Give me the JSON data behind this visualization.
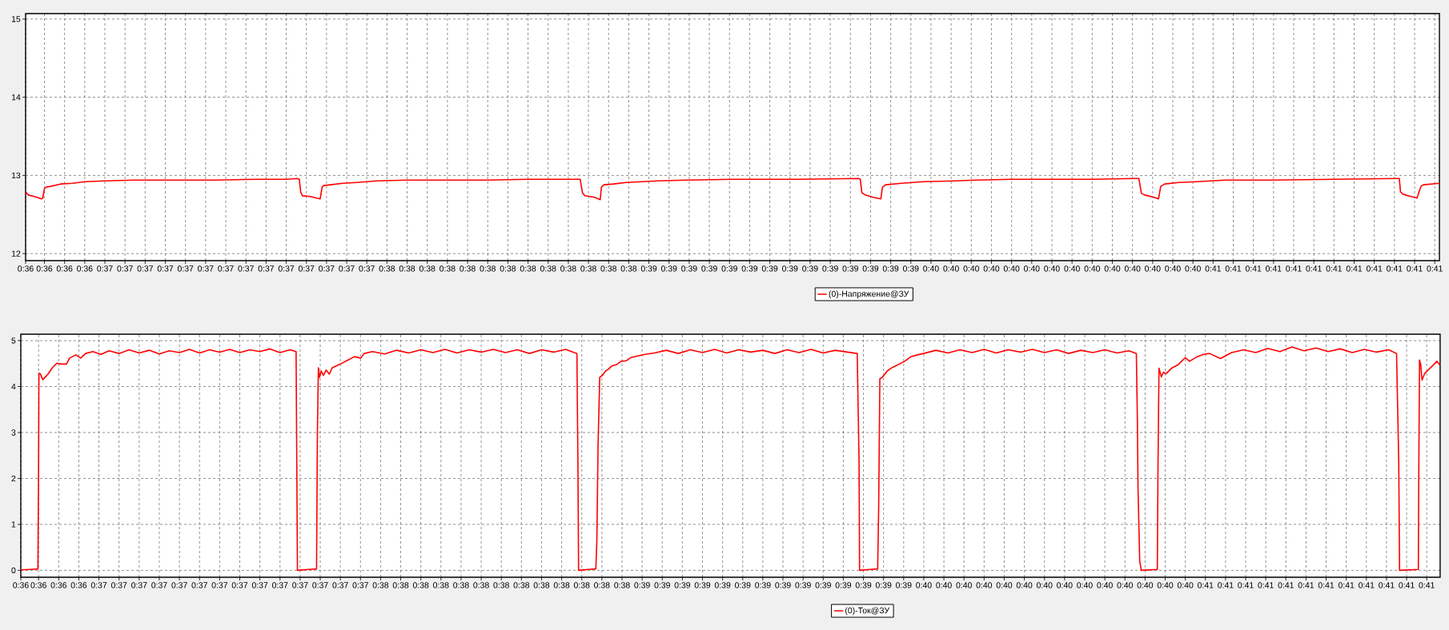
{
  "chart_data": [
    {
      "type": "line",
      "x": [
        0.60458,
        0.60474,
        0.6051,
        0.60552,
        0.6056,
        0.6057,
        0.6058,
        0.60606,
        0.60666,
        0.60738,
        0.6081,
        0.6093,
        0.6111,
        0.6135,
        0.6159,
        0.6183,
        0.6201,
        0.62076,
        0.62088,
        0.62096,
        0.62106,
        0.62154,
        0.6219,
        0.62212,
        0.62224,
        0.62232,
        0.62274,
        0.62346,
        0.6243,
        0.6255,
        0.6273,
        0.6297,
        0.6321,
        0.6345,
        0.63738,
        0.63761,
        0.63774,
        0.63788,
        0.63846,
        0.6388,
        0.63887,
        0.63902,
        0.63959,
        0.64034,
        0.64128,
        0.64223,
        0.64392,
        0.64675,
        0.65052,
        0.65419,
        0.65429,
        0.65438,
        0.65458,
        0.65504,
        0.65551,
        0.65561,
        0.6558,
        0.65674,
        0.65806,
        0.65994,
        0.66116,
        0.6633,
        0.66584,
        0.6681,
        0.67066,
        0.67088,
        0.67103,
        0.67122,
        0.67177,
        0.67205,
        0.67218,
        0.67242,
        0.67326,
        0.67436,
        0.67604,
        0.67882,
        0.68252,
        0.68624,
        0.68639,
        0.68646,
        0.6866,
        0.68707,
        0.68744,
        0.68768,
        0.68782,
        0.68878
      ],
      "series": [
        {
          "name": "(0)-Напряжение@ЗУ",
          "color": "#ff0000",
          "values": [
            12.79,
            12.75,
            12.73,
            12.7,
            12.71,
            12.83,
            12.85,
            12.86,
            12.89,
            12.9,
            12.92,
            12.93,
            12.94,
            12.94,
            12.94,
            12.95,
            12.95,
            12.96,
            12.95,
            12.79,
            12.74,
            12.73,
            12.71,
            12.7,
            12.85,
            12.87,
            12.88,
            12.9,
            12.91,
            12.93,
            12.94,
            12.94,
            12.94,
            12.95,
            12.95,
            12.95,
            12.78,
            12.74,
            12.72,
            12.69,
            12.85,
            12.88,
            12.89,
            12.91,
            12.92,
            12.93,
            12.94,
            12.95,
            12.95,
            12.96,
            12.95,
            12.78,
            12.75,
            12.72,
            12.7,
            12.85,
            12.88,
            12.9,
            12.92,
            12.93,
            12.94,
            12.95,
            12.95,
            12.95,
            12.96,
            12.96,
            12.77,
            12.75,
            12.72,
            12.7,
            12.86,
            12.89,
            12.91,
            12.92,
            12.94,
            12.94,
            12.95,
            12.96,
            12.96,
            12.79,
            12.76,
            12.73,
            12.71,
            12.86,
            12.88,
            12.9
          ]
        }
      ],
      "xlim": [
        0.60458,
        0.68878
      ],
      "ylim": [
        11.91,
        15.07
      ],
      "xticks": [
        {
          "value": 0.60458,
          "label": "0:36"
        },
        {
          "value": 0.6057,
          "label": "0:36"
        },
        {
          "value": 0.6069,
          "label": "0:36"
        },
        {
          "value": 0.6081,
          "label": "0:36"
        },
        {
          "value": 0.6093,
          "label": "0:37"
        },
        {
          "value": 0.6105,
          "label": "0:37"
        },
        {
          "value": 0.6117,
          "label": "0:37"
        },
        {
          "value": 0.6129,
          "label": "0:37"
        },
        {
          "value": 0.6141,
          "label": "0:37"
        },
        {
          "value": 0.6153,
          "label": "0:37"
        },
        {
          "value": 0.6165,
          "label": "0:37"
        },
        {
          "value": 0.6177,
          "label": "0:37"
        },
        {
          "value": 0.6189,
          "label": "0:37"
        },
        {
          "value": 0.6201,
          "label": "0:37"
        },
        {
          "value": 0.6213,
          "label": "0:37"
        },
        {
          "value": 0.6225,
          "label": "0:37"
        },
        {
          "value": 0.6237,
          "label": "0:37"
        },
        {
          "value": 0.6249,
          "label": "0:37"
        },
        {
          "value": 0.6261,
          "label": "0:38"
        },
        {
          "value": 0.6273,
          "label": "0:38"
        },
        {
          "value": 0.6285,
          "label": "0:38"
        },
        {
          "value": 0.6297,
          "label": "0:38"
        },
        {
          "value": 0.6309,
          "label": "0:38"
        },
        {
          "value": 0.6321,
          "label": "0:38"
        },
        {
          "value": 0.6333,
          "label": "0:38"
        },
        {
          "value": 0.6345,
          "label": "0:38"
        },
        {
          "value": 0.6357,
          "label": "0:38"
        },
        {
          "value": 0.6369,
          "label": "0:38"
        },
        {
          "value": 0.6381,
          "label": "0:38"
        },
        {
          "value": 0.6393,
          "label": "0:38"
        },
        {
          "value": 0.6405,
          "label": "0:38"
        },
        {
          "value": 0.6417,
          "label": "0:39"
        },
        {
          "value": 0.6429,
          "label": "0:39"
        },
        {
          "value": 0.6441,
          "label": "0:39"
        },
        {
          "value": 0.6453,
          "label": "0:39"
        },
        {
          "value": 0.6465,
          "label": "0:39"
        },
        {
          "value": 0.6477,
          "label": "0:39"
        },
        {
          "value": 0.6489,
          "label": "0:39"
        },
        {
          "value": 0.6501,
          "label": "0:39"
        },
        {
          "value": 0.6513,
          "label": "0:39"
        },
        {
          "value": 0.6525,
          "label": "0:39"
        },
        {
          "value": 0.6537,
          "label": "0:39"
        },
        {
          "value": 0.6549,
          "label": "0:39"
        },
        {
          "value": 0.6561,
          "label": "0:39"
        },
        {
          "value": 0.6573,
          "label": "0:39"
        },
        {
          "value": 0.6585,
          "label": "0:40"
        },
        {
          "value": 0.6597,
          "label": "0:40"
        },
        {
          "value": 0.6609,
          "label": "0:40"
        },
        {
          "value": 0.6621,
          "label": "0:40"
        },
        {
          "value": 0.6633,
          "label": "0:40"
        },
        {
          "value": 0.6645,
          "label": "0:40"
        },
        {
          "value": 0.6657,
          "label": "0:40"
        },
        {
          "value": 0.6669,
          "label": "0:40"
        },
        {
          "value": 0.6681,
          "label": "0:40"
        },
        {
          "value": 0.6693,
          "label": "0:40"
        },
        {
          "value": 0.6705,
          "label": "0:40"
        },
        {
          "value": 0.6717,
          "label": "0:40"
        },
        {
          "value": 0.6729,
          "label": "0:40"
        },
        {
          "value": 0.6741,
          "label": "0:40"
        },
        {
          "value": 0.6753,
          "label": "0:41"
        },
        {
          "value": 0.6765,
          "label": "0:41"
        },
        {
          "value": 0.6777,
          "label": "0:41"
        },
        {
          "value": 0.6789,
          "label": "0:41"
        },
        {
          "value": 0.6801,
          "label": "0:41"
        },
        {
          "value": 0.6813,
          "label": "0:41"
        },
        {
          "value": 0.6825,
          "label": "0:41"
        },
        {
          "value": 0.6837,
          "label": "0:41"
        },
        {
          "value": 0.6849,
          "label": "0:41"
        },
        {
          "value": 0.6861,
          "label": "0:41"
        },
        {
          "value": 0.6873,
          "label": "0:41"
        },
        {
          "value": 0.6885,
          "label": "0:41"
        }
      ],
      "yticks": [
        12,
        13,
        14,
        15
      ],
      "grid": true,
      "legend": "bottom",
      "line_style": "solid"
    },
    {
      "type": "line",
      "x": [
        0.60464,
        0.60522,
        0.60566,
        0.6057,
        0.60572,
        0.6058,
        0.60595,
        0.60613,
        0.60626,
        0.60652,
        0.60679,
        0.60708,
        0.60736,
        0.60755,
        0.60793,
        0.60821,
        0.6085,
        0.60894,
        0.60942,
        0.6099,
        0.6105,
        0.6111,
        0.6117,
        0.6123,
        0.6129,
        0.6135,
        0.6141,
        0.6147,
        0.6153,
        0.6159,
        0.6165,
        0.6171,
        0.6177,
        0.6183,
        0.6189,
        0.6195,
        0.6201,
        0.6207,
        0.62106,
        0.6211,
        0.62114,
        0.6218,
        0.62228,
        0.62233,
        0.62239,
        0.62246,
        0.62256,
        0.62269,
        0.62285,
        0.62304,
        0.62322,
        0.6237,
        0.62407,
        0.62454,
        0.62492,
        0.62512,
        0.62562,
        0.62634,
        0.62706,
        0.62778,
        0.6285,
        0.62922,
        0.62994,
        0.63066,
        0.63138,
        0.6321,
        0.63282,
        0.63354,
        0.63426,
        0.63498,
        0.6357,
        0.63642,
        0.63714,
        0.63781,
        0.63787,
        0.63791,
        0.63847,
        0.63894,
        0.639,
        0.63907,
        0.63917,
        0.63932,
        0.63952,
        0.6397,
        0.63989,
        0.64018,
        0.64045,
        0.64074,
        0.64102,
        0.6415,
        0.64187,
        0.64243,
        0.64314,
        0.64386,
        0.64458,
        0.6453,
        0.64602,
        0.64674,
        0.64746,
        0.64818,
        0.6489,
        0.64962,
        0.65034,
        0.65106,
        0.65178,
        0.6525,
        0.65322,
        0.65394,
        0.65453,
        0.65464,
        0.65467,
        0.65528,
        0.65575,
        0.65581,
        0.65588,
        0.65603,
        0.65632,
        0.6566,
        0.65698,
        0.65736,
        0.65773,
        0.65812,
        0.65849,
        0.65922,
        0.65994,
        0.66066,
        0.66138,
        0.6621,
        0.66282,
        0.66354,
        0.66426,
        0.66498,
        0.6657,
        0.66642,
        0.66714,
        0.66786,
        0.66858,
        0.6693,
        0.67002,
        0.67074,
        0.67118,
        0.67124,
        0.67128,
        0.67138,
        0.67147,
        0.67243,
        0.67247,
        0.67253,
        0.67267,
        0.6728,
        0.67295,
        0.67332,
        0.67369,
        0.6741,
        0.67435,
        0.67481,
        0.67518,
        0.67555,
        0.6762,
        0.67686,
        0.67758,
        0.6783,
        0.67902,
        0.67974,
        0.68046,
        0.68118,
        0.6819,
        0.68262,
        0.68334,
        0.68406,
        0.68478,
        0.6855,
        0.68622,
        0.6867,
        0.68683,
        0.68688,
        0.688,
        0.68803,
        0.68807,
        0.68814,
        0.68822,
        0.68837,
        0.68864,
        0.68893,
        0.68911,
        0.68926,
        0.6893
      ],
      "series": [
        {
          "name": "(0)-Ток@ЗУ",
          "color": "#ff0000",
          "values": [
            0.01,
            0.02,
            0.03,
            2.15,
            4.29,
            4.28,
            4.15,
            4.22,
            4.27,
            4.41,
            4.51,
            4.49,
            4.49,
            4.62,
            4.69,
            4.62,
            4.72,
            4.76,
            4.7,
            4.78,
            4.72,
            4.8,
            4.73,
            4.79,
            4.71,
            4.78,
            4.74,
            4.81,
            4.73,
            4.8,
            4.75,
            4.81,
            4.74,
            4.8,
            4.76,
            4.82,
            4.74,
            4.8,
            4.76,
            2.39,
            0.0,
            0.02,
            0.03,
            2.96,
            4.41,
            4.2,
            4.34,
            4.24,
            4.36,
            4.27,
            4.41,
            4.49,
            4.56,
            4.65,
            4.62,
            4.72,
            4.76,
            4.71,
            4.79,
            4.73,
            4.8,
            4.74,
            4.81,
            4.73,
            4.8,
            4.75,
            4.81,
            4.74,
            4.8,
            4.72,
            4.8,
            4.75,
            4.81,
            4.72,
            2.35,
            0.0,
            0.02,
            0.03,
            0.64,
            2.7,
            4.2,
            4.24,
            4.34,
            4.38,
            4.45,
            4.48,
            4.55,
            4.56,
            4.63,
            4.67,
            4.7,
            4.73,
            4.79,
            4.72,
            4.8,
            4.74,
            4.81,
            4.73,
            4.8,
            4.75,
            4.79,
            4.72,
            4.8,
            4.74,
            4.81,
            4.73,
            4.79,
            4.75,
            4.72,
            2.35,
            0.0,
            0.02,
            0.03,
            1.39,
            4.17,
            4.2,
            4.34,
            4.41,
            4.48,
            4.55,
            4.65,
            4.69,
            4.72,
            4.79,
            4.73,
            4.8,
            4.74,
            4.81,
            4.73,
            4.8,
            4.75,
            4.81,
            4.74,
            4.8,
            4.72,
            4.79,
            4.74,
            4.8,
            4.73,
            4.78,
            4.72,
            3.3,
            1.78,
            0.21,
            0.0,
            0.02,
            2.22,
            4.4,
            4.21,
            4.31,
            4.28,
            4.41,
            4.48,
            4.63,
            4.55,
            4.65,
            4.7,
            4.72,
            4.61,
            4.74,
            4.8,
            4.74,
            4.83,
            4.76,
            4.86,
            4.78,
            4.84,
            4.76,
            4.82,
            4.74,
            4.81,
            4.75,
            4.8,
            4.72,
            2.39,
            0.0,
            0.02,
            2.32,
            4.58,
            4.48,
            4.14,
            4.28,
            4.38,
            4.48,
            4.55,
            4.48,
            4.5
          ]
        }
      ],
      "xlim": [
        0.60464,
        0.6893
      ],
      "ylim": [
        -0.15,
        5.14
      ],
      "xticks": [
        {
          "value": 0.60464,
          "label": "0:36"
        },
        {
          "value": 0.6057,
          "label": "0:36"
        },
        {
          "value": 0.6069,
          "label": "0:36"
        },
        {
          "value": 0.6081,
          "label": "0:36"
        },
        {
          "value": 0.6093,
          "label": "0:37"
        },
        {
          "value": 0.6105,
          "label": "0:37"
        },
        {
          "value": 0.6117,
          "label": "0:37"
        },
        {
          "value": 0.6129,
          "label": "0:37"
        },
        {
          "value": 0.6141,
          "label": "0:37"
        },
        {
          "value": 0.6153,
          "label": "0:37"
        },
        {
          "value": 0.6165,
          "label": "0:37"
        },
        {
          "value": 0.6177,
          "label": "0:37"
        },
        {
          "value": 0.6189,
          "label": "0:37"
        },
        {
          "value": 0.6201,
          "label": "0:37"
        },
        {
          "value": 0.6213,
          "label": "0:37"
        },
        {
          "value": 0.6225,
          "label": "0:37"
        },
        {
          "value": 0.6237,
          "label": "0:37"
        },
        {
          "value": 0.6249,
          "label": "0:37"
        },
        {
          "value": 0.6261,
          "label": "0:38"
        },
        {
          "value": 0.6273,
          "label": "0:38"
        },
        {
          "value": 0.6285,
          "label": "0:38"
        },
        {
          "value": 0.6297,
          "label": "0:38"
        },
        {
          "value": 0.6309,
          "label": "0:38"
        },
        {
          "value": 0.6321,
          "label": "0:38"
        },
        {
          "value": 0.6333,
          "label": "0:38"
        },
        {
          "value": 0.6345,
          "label": "0:38"
        },
        {
          "value": 0.6357,
          "label": "0:38"
        },
        {
          "value": 0.6369,
          "label": "0:38"
        },
        {
          "value": 0.6381,
          "label": "0:38"
        },
        {
          "value": 0.6393,
          "label": "0:38"
        },
        {
          "value": 0.6405,
          "label": "0:38"
        },
        {
          "value": 0.6417,
          "label": "0:39"
        },
        {
          "value": 0.6429,
          "label": "0:39"
        },
        {
          "value": 0.6441,
          "label": "0:39"
        },
        {
          "value": 0.6453,
          "label": "0:39"
        },
        {
          "value": 0.6465,
          "label": "0:39"
        },
        {
          "value": 0.6477,
          "label": "0:39"
        },
        {
          "value": 0.6489,
          "label": "0:39"
        },
        {
          "value": 0.6501,
          "label": "0:39"
        },
        {
          "value": 0.6513,
          "label": "0:39"
        },
        {
          "value": 0.6525,
          "label": "0:39"
        },
        {
          "value": 0.6537,
          "label": "0:39"
        },
        {
          "value": 0.6549,
          "label": "0:39"
        },
        {
          "value": 0.6561,
          "label": "0:39"
        },
        {
          "value": 0.6573,
          "label": "0:39"
        },
        {
          "value": 0.6585,
          "label": "0:40"
        },
        {
          "value": 0.6597,
          "label": "0:40"
        },
        {
          "value": 0.6609,
          "label": "0:40"
        },
        {
          "value": 0.6621,
          "label": "0:40"
        },
        {
          "value": 0.6633,
          "label": "0:40"
        },
        {
          "value": 0.6645,
          "label": "0:40"
        },
        {
          "value": 0.6657,
          "label": "0:40"
        },
        {
          "value": 0.6669,
          "label": "0:40"
        },
        {
          "value": 0.6681,
          "label": "0:40"
        },
        {
          "value": 0.6693,
          "label": "0:40"
        },
        {
          "value": 0.6705,
          "label": "0:40"
        },
        {
          "value": 0.6717,
          "label": "0:40"
        },
        {
          "value": 0.6729,
          "label": "0:40"
        },
        {
          "value": 0.6741,
          "label": "0:40"
        },
        {
          "value": 0.6753,
          "label": "0:41"
        },
        {
          "value": 0.6765,
          "label": "0:41"
        },
        {
          "value": 0.6777,
          "label": "0:41"
        },
        {
          "value": 0.6789,
          "label": "0:41"
        },
        {
          "value": 0.6801,
          "label": "0:41"
        },
        {
          "value": 0.6813,
          "label": "0:41"
        },
        {
          "value": 0.6825,
          "label": "0:41"
        },
        {
          "value": 0.6837,
          "label": "0:41"
        },
        {
          "value": 0.6849,
          "label": "0:41"
        },
        {
          "value": 0.6861,
          "label": "0:41"
        },
        {
          "value": 0.6873,
          "label": "0:41"
        },
        {
          "value": 0.6885,
          "label": "0:41"
        }
      ],
      "yticks": [
        0,
        1,
        2,
        3,
        4,
        5
      ],
      "grid": true,
      "legend": "bottom",
      "line_style": "solid"
    }
  ]
}
